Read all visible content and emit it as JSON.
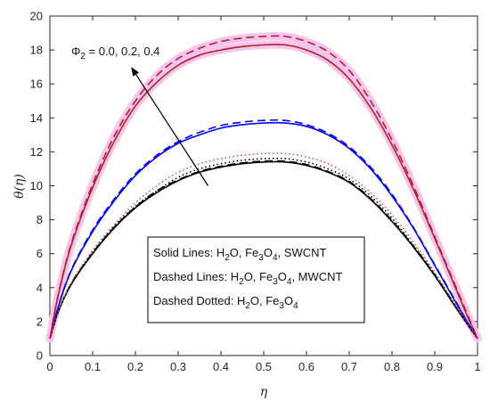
{
  "chart_data": {
    "type": "line",
    "title": "",
    "xlabel": "η",
    "ylabel": "θ(η)",
    "xlim": [
      0,
      1
    ],
    "ylim": [
      0,
      20
    ],
    "xticks": [
      "0",
      "0.1",
      "0.2",
      "0.3",
      "0.4",
      "0.5",
      "0.6",
      "0.7",
      "0.8",
      "0.9",
      "1"
    ],
    "yticks": [
      "0",
      "2",
      "4",
      "6",
      "8",
      "10",
      "12",
      "14",
      "16",
      "18",
      "20"
    ],
    "grid": false,
    "legend_box": {
      "placement": "lower-center",
      "lines": [
        {
          "label": "Solid Lines: H",
          "sub1": "2",
          "mid": "O, Fe",
          "sub2": "3",
          "mid2": "O",
          "sub3": "4",
          "tail": ", SWCNT"
        },
        {
          "label": "Dashed Lines: H",
          "sub1": "2",
          "mid": "O, Fe",
          "sub2": "3",
          "mid2": "O",
          "sub3": "4",
          "tail": ", MWCNT"
        },
        {
          "label": "Dashed Dotted: H",
          "sub1": "2",
          "mid": "O, Fe",
          "sub2": "3",
          "mid2": "O",
          "sub3": "4",
          "tail": ""
        }
      ]
    },
    "annotation": {
      "text_pre": "Φ",
      "text_sub": "2",
      "text_post": " = 0.0, 0.2, 0.4",
      "arrow_from": [
        0.37,
        10.0
      ],
      "arrow_to": [
        0.19,
        17.0
      ]
    },
    "series": [
      {
        "style": "solid",
        "color": "#000000",
        "x": [
          0,
          0.02,
          0.05,
          0.1,
          0.15,
          0.2,
          0.25,
          0.3,
          0.35,
          0.4,
          0.45,
          0.5,
          0.55,
          0.6,
          0.65,
          0.7,
          0.75,
          0.8,
          0.85,
          0.9,
          0.95,
          0.98,
          1
        ],
        "y": [
          1.0,
          2.6,
          4.2,
          6.0,
          7.5,
          8.7,
          9.6,
          10.3,
          10.8,
          11.1,
          11.3,
          11.4,
          11.4,
          11.2,
          10.8,
          10.2,
          9.2,
          7.9,
          6.4,
          4.7,
          2.8,
          1.7,
          1.0
        ]
      },
      {
        "style": "dashed",
        "color": "#000000",
        "x": [
          0,
          0.02,
          0.05,
          0.1,
          0.15,
          0.2,
          0.25,
          0.3,
          0.35,
          0.4,
          0.45,
          0.5,
          0.55,
          0.6,
          0.65,
          0.7,
          0.75,
          0.8,
          0.85,
          0.9,
          0.95,
          0.98,
          1
        ],
        "y": [
          1.0,
          2.6,
          4.25,
          6.05,
          7.55,
          8.75,
          9.7,
          10.35,
          10.85,
          11.15,
          11.35,
          11.45,
          11.45,
          11.25,
          10.85,
          10.25,
          9.25,
          7.95,
          6.45,
          4.75,
          2.85,
          1.7,
          1.0
        ]
      },
      {
        "style": "dotted",
        "color": "#000000",
        "x": [
          0,
          0.02,
          0.05,
          0.1,
          0.15,
          0.2,
          0.25,
          0.3,
          0.35,
          0.4,
          0.45,
          0.5,
          0.55,
          0.6,
          0.65,
          0.7,
          0.75,
          0.8,
          0.85,
          0.9,
          0.95,
          0.98,
          1
        ],
        "y": [
          1.0,
          2.6,
          4.2,
          6.1,
          7.6,
          8.8,
          9.7,
          10.5,
          11.0,
          11.3,
          11.5,
          11.6,
          11.6,
          11.4,
          11.0,
          10.4,
          9.4,
          8.1,
          6.5,
          4.8,
          2.9,
          1.7,
          1.0
        ]
      },
      {
        "style": "solid",
        "color": "#0000ff",
        "x": [
          0,
          0.02,
          0.05,
          0.1,
          0.15,
          0.2,
          0.25,
          0.3,
          0.35,
          0.4,
          0.45,
          0.5,
          0.55,
          0.6,
          0.65,
          0.7,
          0.75,
          0.8,
          0.85,
          0.9,
          0.95,
          0.98,
          1
        ],
        "y": [
          1.0,
          2.9,
          5.0,
          7.3,
          9.1,
          10.6,
          11.7,
          12.5,
          13.0,
          13.4,
          13.6,
          13.7,
          13.7,
          13.5,
          13.0,
          12.2,
          11.0,
          9.4,
          7.5,
          5.3,
          3.1,
          1.8,
          1.0
        ]
      },
      {
        "style": "dashed",
        "color": "#0000ff",
        "x": [
          0,
          0.02,
          0.05,
          0.1,
          0.15,
          0.2,
          0.25,
          0.3,
          0.35,
          0.4,
          0.45,
          0.5,
          0.55,
          0.6,
          0.65,
          0.7,
          0.75,
          0.8,
          0.85,
          0.9,
          0.95,
          0.98,
          1
        ],
        "y": [
          1.0,
          2.9,
          5.05,
          7.4,
          9.2,
          10.7,
          11.8,
          12.6,
          13.15,
          13.55,
          13.75,
          13.85,
          13.85,
          13.6,
          13.1,
          12.3,
          11.1,
          9.5,
          7.55,
          5.35,
          3.15,
          1.8,
          1.0
        ]
      },
      {
        "style": "dotted",
        "color": "#d9534f",
        "x": [
          0,
          0.02,
          0.05,
          0.1,
          0.15,
          0.2,
          0.25,
          0.3,
          0.35,
          0.4,
          0.45,
          0.5,
          0.55,
          0.6,
          0.65,
          0.7,
          0.75,
          0.8,
          0.85,
          0.9,
          0.95,
          0.98,
          1
        ],
        "y": [
          1.0,
          2.6,
          4.3,
          6.2,
          7.7,
          9.0,
          10.0,
          10.8,
          11.3,
          11.6,
          11.8,
          11.9,
          11.9,
          11.7,
          11.3,
          10.6,
          9.6,
          8.3,
          6.7,
          4.9,
          2.9,
          1.7,
          1.0
        ]
      },
      {
        "style": "solid",
        "color": "#b22222",
        "x": [
          0,
          0.02,
          0.05,
          0.1,
          0.15,
          0.2,
          0.25,
          0.3,
          0.35,
          0.4,
          0.45,
          0.5,
          0.55,
          0.6,
          0.65,
          0.7,
          0.75,
          0.8,
          0.85,
          0.9,
          0.95,
          0.98,
          1
        ],
        "y": [
          1.0,
          3.6,
          6.5,
          9.9,
          12.6,
          14.7,
          16.1,
          17.1,
          17.7,
          18.0,
          18.2,
          18.3,
          18.3,
          18.0,
          17.4,
          16.3,
          14.6,
          12.4,
          9.8,
          6.9,
          3.9,
          2.1,
          1.0
        ]
      },
      {
        "style": "dashed",
        "color": "#b22222",
        "x": [
          0,
          0.02,
          0.05,
          0.1,
          0.15,
          0.2,
          0.25,
          0.3,
          0.35,
          0.4,
          0.45,
          0.5,
          0.55,
          0.6,
          0.65,
          0.7,
          0.75,
          0.8,
          0.85,
          0.9,
          0.95,
          0.98,
          1
        ],
        "y": [
          1.0,
          3.65,
          6.6,
          10.1,
          12.9,
          15.0,
          16.5,
          17.5,
          18.1,
          18.5,
          18.7,
          18.8,
          18.8,
          18.5,
          17.9,
          16.8,
          15.0,
          12.7,
          10.0,
          7.0,
          4.0,
          2.2,
          1.0
        ]
      }
    ]
  }
}
